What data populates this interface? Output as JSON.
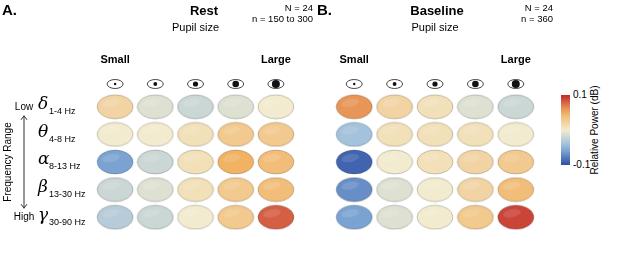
{
  "chart_data": [
    {
      "type": "heatmap",
      "letter": "A.",
      "title": "Rest",
      "annotations": [
        "N = 24",
        "n = 150 to 300"
      ],
      "x_label": "Pupil size",
      "categories": [
        "Small",
        null,
        null,
        null,
        "Large"
      ],
      "y_label": "Frequency Range",
      "y_ends": [
        "Low",
        "High"
      ],
      "rows": [
        "δ",
        "θ",
        "α",
        "β",
        "γ"
      ],
      "row_ranges": [
        "1-4 Hz",
        "4-8 Hz",
        "8-13 Hz",
        "13-30 Hz",
        "30-90 Hz"
      ],
      "values": [
        [
          0.02,
          -0.01,
          -0.02,
          -0.01,
          0.0
        ],
        [
          0.0,
          0.0,
          0.01,
          0.03,
          0.03
        ],
        [
          -0.06,
          -0.02,
          0.01,
          0.05,
          0.04
        ],
        [
          -0.02,
          -0.01,
          0.01,
          0.03,
          0.04
        ],
        [
          -0.03,
          -0.02,
          0.0,
          0.03,
          0.08
        ]
      ]
    },
    {
      "type": "heatmap",
      "letter": "B.",
      "title": "Baseline",
      "annotations": [
        "N = 24",
        "n = 360"
      ],
      "x_label": "Pupil size",
      "categories": [
        "Small",
        null,
        null,
        null,
        "Large"
      ],
      "rows": [
        "δ",
        "θ",
        "α",
        "β",
        "γ"
      ],
      "tick_labels": "x",
      "values": [
        [
          0.06,
          0.02,
          0.01,
          -0.01,
          -0.02
        ],
        [
          -0.04,
          0.01,
          0.01,
          0.01,
          0.0
        ],
        [
          -0.09,
          0.0,
          0.01,
          0.02,
          0.03
        ],
        [
          -0.07,
          -0.01,
          0.0,
          0.02,
          0.04
        ],
        [
          -0.06,
          -0.01,
          0.0,
          0.03,
          0.09
        ]
      ]
    }
  ],
  "colorbar": {
    "title": "Relative Power (dB)",
    "range": [
      -0.1,
      0.1
    ],
    "ticks": [
      -0.1,
      0.1
    ]
  }
}
